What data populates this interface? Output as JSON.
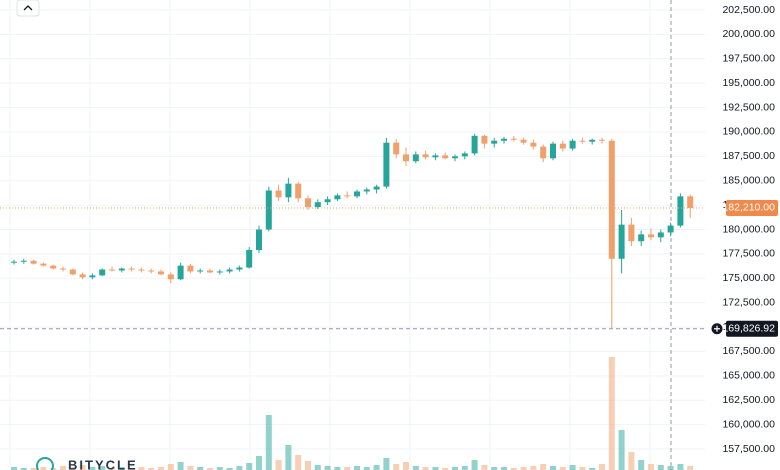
{
  "chart_data": {
    "type": "candlestick",
    "watermark": "BITYCLE",
    "up_color": "#26a69a",
    "down_color": "#f0a06a",
    "open": [
      176600,
      176700,
      176800,
      176500,
      176300,
      176000,
      175900,
      175400,
      175100,
      175300,
      175900,
      175800,
      176000,
      175900,
      175800,
      175700,
      175400,
      174900,
      176300,
      175700,
      175800,
      175600,
      175700,
      175900,
      176100,
      177900,
      180000,
      184000,
      183300,
      184700,
      183200,
      182300,
      182800,
      183100,
      183500,
      183400,
      183900,
      184100,
      184400,
      188900,
      187700,
      187000,
      187700,
      187400,
      187600,
      187300,
      187500,
      187800,
      189600,
      188800,
      189100,
      189300,
      189200,
      188900,
      188500,
      187300,
      188800,
      188300,
      189100,
      189000,
      189200,
      189100,
      177000,
      180500,
      178800,
      179500,
      179200,
      179700,
      180400,
      183400
    ],
    "high": [
      176900,
      177000,
      176900,
      176600,
      176400,
      176200,
      176000,
      175600,
      175500,
      176000,
      176200,
      176100,
      176200,
      176100,
      176000,
      175900,
      175600,
      176600,
      176500,
      176000,
      176000,
      175900,
      176100,
      176300,
      178200,
      180400,
      184400,
      184600,
      185300,
      184900,
      183500,
      183100,
      183400,
      183700,
      183900,
      184100,
      184300,
      184600,
      189400,
      189300,
      188400,
      188000,
      188100,
      187800,
      187900,
      187700,
      188000,
      189800,
      189700,
      189400,
      189500,
      189600,
      189400,
      189200,
      188700,
      189000,
      189100,
      189300,
      189400,
      189300,
      189400,
      189300,
      182000,
      181200,
      179900,
      180100,
      180000,
      180700,
      183700,
      183600
    ],
    "low": [
      176400,
      176500,
      176400,
      176200,
      175900,
      175700,
      175300,
      174900,
      174900,
      175200,
      175700,
      175600,
      175700,
      175600,
      175500,
      175300,
      174500,
      174800,
      175500,
      175500,
      175500,
      175400,
      175500,
      175700,
      176000,
      177600,
      179800,
      182900,
      182800,
      182800,
      182000,
      182100,
      182500,
      182900,
      183200,
      183200,
      183600,
      183700,
      184200,
      187300,
      186500,
      186800,
      187200,
      187100,
      187200,
      187000,
      187200,
      187600,
      188300,
      188400,
      188800,
      189000,
      188700,
      188200,
      186900,
      187100,
      188000,
      188100,
      188800,
      188700,
      188800,
      169826.92,
      175500,
      178300,
      178300,
      178900,
      178700,
      179300,
      180200,
      181200
    ],
    "close": [
      176700,
      176800,
      176500,
      176300,
      176000,
      175900,
      175400,
      175100,
      175300,
      175900,
      175800,
      176000,
      175900,
      175800,
      175700,
      175400,
      174900,
      176300,
      175700,
      175800,
      175600,
      175700,
      175900,
      176100,
      177900,
      180000,
      184000,
      183300,
      184700,
      183200,
      182300,
      182800,
      183100,
      183500,
      183400,
      183900,
      184100,
      184400,
      188900,
      187700,
      187000,
      187700,
      187400,
      187600,
      187300,
      187500,
      187800,
      189600,
      188800,
      189100,
      189300,
      189200,
      188900,
      188500,
      187300,
      188800,
      188300,
      189100,
      189000,
      189200,
      189100,
      177000,
      180500,
      178800,
      179500,
      179200,
      179700,
      180400,
      183400,
      182210
    ],
    "volume": [
      3,
      2,
      2,
      3,
      2,
      4,
      3,
      5,
      3,
      4,
      2,
      3,
      2,
      3,
      2,
      3,
      6,
      8,
      4,
      3,
      2,
      3,
      2,
      4,
      7,
      14,
      55,
      10,
      25,
      15,
      9,
      5,
      4,
      3,
      3,
      4,
      3,
      5,
      12,
      6,
      8,
      4,
      3,
      3,
      2,
      3,
      4,
      10,
      5,
      3,
      3,
      2,
      3,
      4,
      6,
      4,
      3,
      5,
      3,
      2,
      6,
      113,
      40,
      18,
      10,
      6,
      5,
      4,
      6,
      4
    ],
    "ylim": [
      155350,
      203525
    ],
    "yticks": [
      {
        "value": 157500,
        "label": "157,500.00"
      },
      {
        "value": 160000,
        "label": "160,000.00"
      },
      {
        "value": 162500,
        "label": "162,500.00"
      },
      {
        "value": 165000,
        "label": "165,000.00"
      },
      {
        "value": 167500,
        "label": "167,500.00"
      },
      {
        "value": 170000,
        "label": "170,000.00"
      },
      {
        "value": 172500,
        "label": "172,500.00"
      },
      {
        "value": 175000,
        "label": "175,000.00"
      },
      {
        "value": 177500,
        "label": "177,500.00"
      },
      {
        "value": 180000,
        "label": "180,000.00"
      },
      {
        "value": 182500,
        "label": "182,500.00"
      },
      {
        "value": 185000,
        "label": "185,000.00"
      },
      {
        "value": 187500,
        "label": "187,500.00"
      },
      {
        "value": 190000,
        "label": "190,000.00"
      },
      {
        "value": 192500,
        "label": "192,500.00"
      },
      {
        "value": 195000,
        "label": "195,000.00"
      },
      {
        "value": 197500,
        "label": "197,500.00"
      },
      {
        "value": 200000,
        "label": "200,000.00"
      },
      {
        "value": 202500,
        "label": "202,500.00"
      }
    ],
    "last_price": {
      "value": 182210,
      "label": "182,210.00"
    },
    "crosshair_price": {
      "value": 169826.92,
      "label": "169,826.92"
    },
    "grid": true
  }
}
